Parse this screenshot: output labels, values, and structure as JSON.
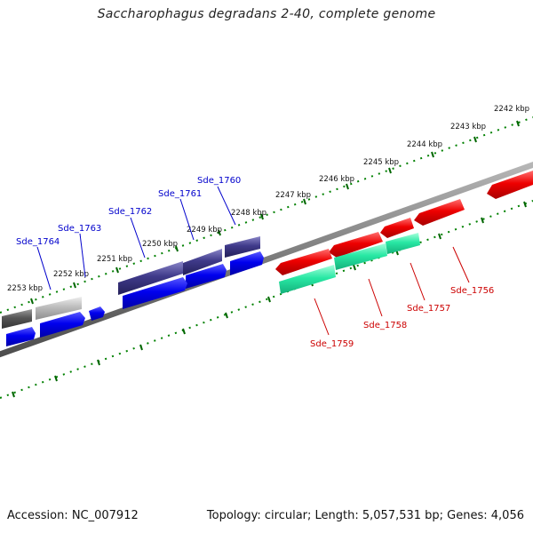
{
  "title": "Saccharophagus degradans 2-40, complete genome",
  "accession": "Accession: NC_007912",
  "topology": "Topology: circular; Length: 5,057,531 bp; Genes: 4,056",
  "kbp_labels": [
    "2242 kbp",
    "2243 kbp",
    "2244 kbp",
    "2245 kbp",
    "2246 kbp",
    "2247 kbp",
    "2248 kbp",
    "2249 kbp",
    "2250 kbp",
    "2251 kbp",
    "2252 kbp",
    "2253 kbp"
  ],
  "genes_forward": [
    "Sde_1760",
    "Sde_1761",
    "Sde_1762",
    "Sde_1763",
    "Sde_1764"
  ],
  "genes_reverse": [
    "Sde_1756",
    "Sde_1757",
    "Sde_1758",
    "Sde_1759"
  ],
  "colors": {
    "forward_label": "#0000cc",
    "reverse_label": "#cc0000",
    "cds_blue": "#0000ee",
    "cds_navy": "#3a3580",
    "cds_red": "#ee0000",
    "cds_teal": "#22e8a0",
    "cds_gray_dark": "#555555",
    "cds_gray_light": "#bbbbbb",
    "backbone": "#777777",
    "ticks": "#007700"
  }
}
